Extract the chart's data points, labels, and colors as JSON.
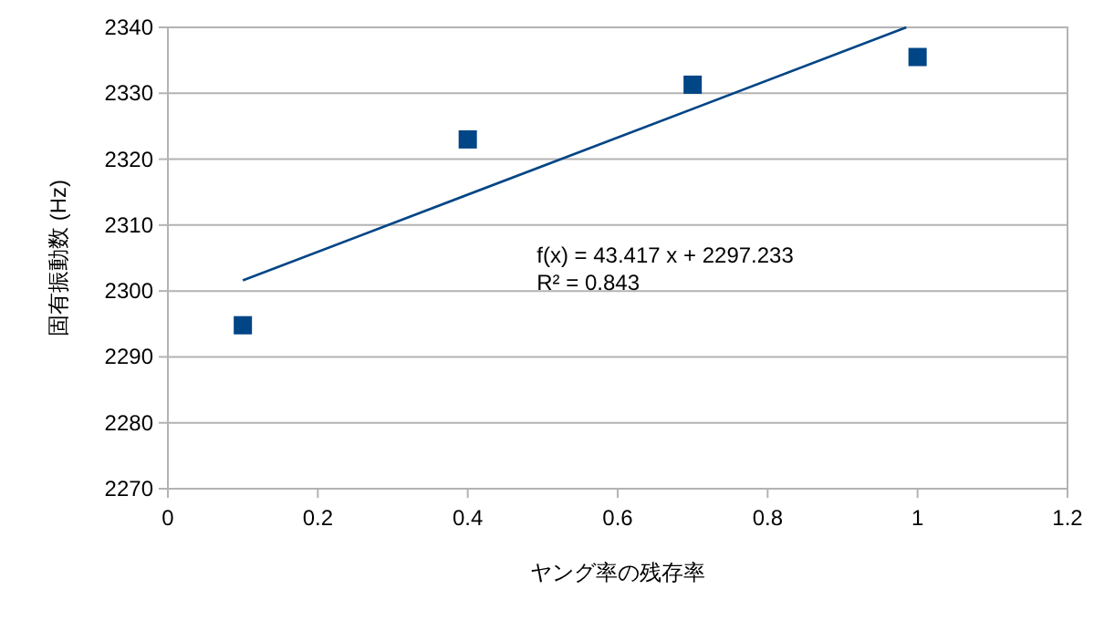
{
  "chart_data": {
    "type": "scatter",
    "xlabel": "ヤング率の残存率",
    "ylabel": "固有振動数 (Hz)",
    "x": [
      0.1,
      0.4,
      0.7,
      1.0
    ],
    "series": [
      {
        "type": "scatter",
        "color": "#004586",
        "marker": "square",
        "values": [
          2294.8,
          2323.0,
          2331.3,
          2335.5
        ]
      },
      {
        "type": "line",
        "color": "#004586",
        "x": [
          0.1,
          0.985
        ],
        "values": [
          2301.6,
          2340.0
        ],
        "line_style": "solid"
      }
    ],
    "xlim": [
      0,
      1.2
    ],
    "xticks": [
      0,
      0.2,
      0.4,
      0.6,
      0.8,
      1,
      1.2
    ],
    "ylim": [
      2270,
      2340
    ],
    "yticks": [
      2270,
      2280,
      2290,
      2300,
      2310,
      2320,
      2330,
      2340
    ],
    "grid": "y",
    "annotations": [
      "f(x) = 43.417 x + 2297.233",
      "R² = 0.843"
    ]
  }
}
